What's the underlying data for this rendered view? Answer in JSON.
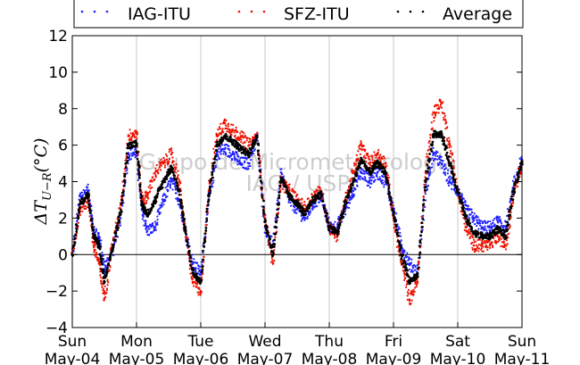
{
  "colors": {
    "iag": "#1f1fff",
    "sfz": "#ee1100",
    "average": "#000000",
    "grid": "#c8c8c8",
    "zero_line": "#000000"
  },
  "legend": {
    "entries": [
      {
        "label": "IAG-ITU",
        "marker": "dots",
        "color": "#1f1fff"
      },
      {
        "label": "SFZ-ITU",
        "marker": "dots",
        "color": "#ee1100"
      },
      {
        "label": "Average",
        "marker": "dots",
        "color": "#000000"
      }
    ],
    "placement": "top"
  },
  "watermark": {
    "line1": "Grupo de Micrometeorologia",
    "line2": "IAG / USP"
  },
  "chart_data": {
    "type": "scatter",
    "title": "",
    "xlabel": "",
    "ylabel": "ΔT_{U−R}(°C)",
    "ylim": [
      -4,
      12
    ],
    "yticks": [
      "−4",
      "−2",
      "0",
      "2",
      "4",
      "6",
      "8",
      "10",
      "12"
    ],
    "xlim": [
      "May-04",
      "May-11"
    ],
    "xtick_labels": [
      {
        "day": "Sun",
        "date": "May-04"
      },
      {
        "day": "Mon",
        "date": "May-05"
      },
      {
        "day": "Tue",
        "date": "May-06"
      },
      {
        "day": "Wed",
        "date": "May-07"
      },
      {
        "day": "Thu",
        "date": "May-08"
      },
      {
        "day": "Fri",
        "date": "May-09"
      },
      {
        "day": "Sat",
        "date": "May-10"
      },
      {
        "day": "Sun",
        "date": "May-11"
      }
    ],
    "grid": {
      "vertical": true,
      "horizontal": false
    },
    "zero_line": true,
    "series": [
      {
        "name": "IAG-ITU",
        "x": [
          "May-04 00:00",
          "May-04 03:00",
          "May-04 06:00",
          "May-04 08:00",
          "May-04 10:00",
          "May-04 12:00",
          "May-04 15:00",
          "May-04 18:00",
          "May-04 21:00",
          "May-05 00:00",
          "May-05 02:00",
          "May-05 04:00",
          "May-05 07:00",
          "May-05 10:00",
          "May-05 13:00",
          "May-05 16:00",
          "May-05 18:00",
          "May-05 21:00",
          "May-06 00:00",
          "May-06 03:00",
          "May-06 06:00",
          "May-06 09:00",
          "May-06 12:00",
          "May-06 15:00",
          "May-06 18:00",
          "May-06 21:00",
          "May-07 00:00",
          "May-07 03:00",
          "May-07 06:00",
          "May-07 09:00",
          "May-07 12:00",
          "May-07 15:00",
          "May-07 18:00",
          "May-07 21:00",
          "May-08 00:00",
          "May-08 03:00",
          "May-08 06:00",
          "May-08 09:00",
          "May-08 12:00",
          "May-08 15:00",
          "May-08 18:00",
          "May-08 21:00",
          "May-09 00:00",
          "May-09 03:00",
          "May-09 06:00",
          "May-09 09:00",
          "May-09 12:00",
          "May-09 15:00",
          "May-09 18:00",
          "May-09 21:00",
          "May-10 00:00",
          "May-10 03:00",
          "May-10 06:00",
          "May-10 09:00",
          "May-10 12:00",
          "May-10 15:00",
          "May-10 18:00",
          "May-10 21:00",
          "May-11 00:00"
        ],
        "y": [
          0.0,
          3.2,
          3.5,
          1.2,
          1.0,
          -0.8,
          0.2,
          2.0,
          5.5,
          5.6,
          2.5,
          1.3,
          1.5,
          3.0,
          4.0,
          3.0,
          1.5,
          -0.5,
          -1.0,
          3.0,
          5.5,
          5.8,
          5.5,
          5.0,
          5.0,
          6.5,
          1.5,
          0.5,
          4.5,
          3.0,
          2.5,
          2.0,
          2.8,
          3.2,
          1.5,
          1.5,
          2.5,
          3.5,
          4.5,
          4.0,
          4.5,
          4.0,
          2.5,
          0.5,
          -0.5,
          -1.0,
          3.5,
          5.5,
          5.0,
          4.0,
          3.5,
          2.5,
          2.0,
          1.5,
          1.5,
          1.8,
          1.5,
          3.8,
          5.2
        ]
      },
      {
        "name": "SFZ-ITU",
        "x": [
          "May-04 00:00",
          "May-04 03:00",
          "May-04 06:00",
          "May-04 08:00",
          "May-04 10:00",
          "May-04 12:00",
          "May-04 15:00",
          "May-04 18:00",
          "May-04 21:00",
          "May-05 00:00",
          "May-05 02:00",
          "May-05 04:00",
          "May-05 07:00",
          "May-05 10:00",
          "May-05 13:00",
          "May-05 16:00",
          "May-05 18:00",
          "May-05 21:00",
          "May-06 00:00",
          "May-06 03:00",
          "May-06 06:00",
          "May-06 09:00",
          "May-06 12:00",
          "May-06 15:00",
          "May-06 18:00",
          "May-06 21:00",
          "May-07 00:00",
          "May-07 03:00",
          "May-07 06:00",
          "May-07 09:00",
          "May-07 12:00",
          "May-07 15:00",
          "May-07 18:00",
          "May-07 21:00",
          "May-08 00:00",
          "May-08 03:00",
          "May-08 06:00",
          "May-08 09:00",
          "May-08 12:00",
          "May-08 15:00",
          "May-08 18:00",
          "May-08 21:00",
          "May-09 00:00",
          "May-09 03:00",
          "May-09 06:00",
          "May-09 09:00",
          "May-09 12:00",
          "May-09 15:00",
          "May-09 18:00",
          "May-09 21:00",
          "May-10 00:00",
          "May-10 03:00",
          "May-10 06:00",
          "May-10 09:00",
          "May-10 12:00",
          "May-10 15:00",
          "May-10 18:00",
          "May-10 21:00",
          "May-11 00:00"
        ],
        "y": [
          0.0,
          2.5,
          3.0,
          0.5,
          -0.5,
          -2.4,
          0.5,
          2.5,
          6.5,
          6.7,
          3.0,
          3.2,
          4.5,
          5.0,
          5.5,
          4.0,
          1.5,
          -1.5,
          -2.0,
          3.5,
          6.5,
          7.2,
          6.8,
          6.5,
          6.0,
          6.5,
          2.0,
          -0.5,
          4.0,
          3.5,
          3.0,
          2.5,
          3.2,
          3.5,
          1.5,
          1.0,
          3.0,
          4.5,
          6.0,
          5.0,
          5.5,
          5.0,
          2.0,
          -0.5,
          -2.5,
          -1.5,
          4.5,
          7.8,
          8.3,
          6.0,
          3.5,
          1.5,
          0.5,
          0.5,
          0.5,
          1.0,
          0.5,
          3.5,
          5.0
        ]
      },
      {
        "name": "Average",
        "x": [
          "May-04 00:00",
          "May-04 03:00",
          "May-04 06:00",
          "May-04 08:00",
          "May-04 10:00",
          "May-04 12:00",
          "May-04 15:00",
          "May-04 18:00",
          "May-04 21:00",
          "May-05 00:00",
          "May-05 02:00",
          "May-05 04:00",
          "May-05 07:00",
          "May-05 10:00",
          "May-05 13:00",
          "May-05 16:00",
          "May-05 18:00",
          "May-05 21:00",
          "May-06 00:00",
          "May-06 03:00",
          "May-06 06:00",
          "May-06 09:00",
          "May-06 12:00",
          "May-06 15:00",
          "May-06 18:00",
          "May-06 21:00",
          "May-07 00:00",
          "May-07 03:00",
          "May-07 06:00",
          "May-07 09:00",
          "May-07 12:00",
          "May-07 15:00",
          "May-07 18:00",
          "May-07 21:00",
          "May-08 00:00",
          "May-08 03:00",
          "May-08 06:00",
          "May-08 09:00",
          "May-08 12:00",
          "May-08 15:00",
          "May-08 18:00",
          "May-08 21:00",
          "May-09 00:00",
          "May-09 03:00",
          "May-09 06:00",
          "May-09 09:00",
          "May-09 12:00",
          "May-09 15:00",
          "May-09 18:00",
          "May-09 21:00",
          "May-10 00:00",
          "May-10 03:00",
          "May-10 06:00",
          "May-10 09:00",
          "May-10 12:00",
          "May-10 15:00",
          "May-10 18:00",
          "May-10 21:00",
          "May-11 00:00"
        ],
        "y": [
          0.0,
          2.8,
          3.3,
          1.0,
          0.5,
          -1.5,
          0.3,
          2.2,
          6.0,
          6.1,
          2.8,
          2.2,
          3.0,
          4.0,
          4.8,
          3.5,
          1.5,
          -1.0,
          -1.5,
          3.2,
          6.0,
          6.5,
          6.2,
          5.8,
          5.5,
          6.5,
          1.8,
          0.0,
          4.2,
          3.2,
          2.8,
          2.2,
          3.0,
          3.3,
          1.5,
          1.2,
          2.8,
          4.0,
          5.2,
          4.5,
          5.0,
          4.5,
          2.2,
          0.0,
          -1.5,
          -1.2,
          4.0,
          6.6,
          6.6,
          5.0,
          3.5,
          2.0,
          1.2,
          1.0,
          1.0,
          1.4,
          1.0,
          3.6,
          5.1
        ]
      }
    ]
  }
}
